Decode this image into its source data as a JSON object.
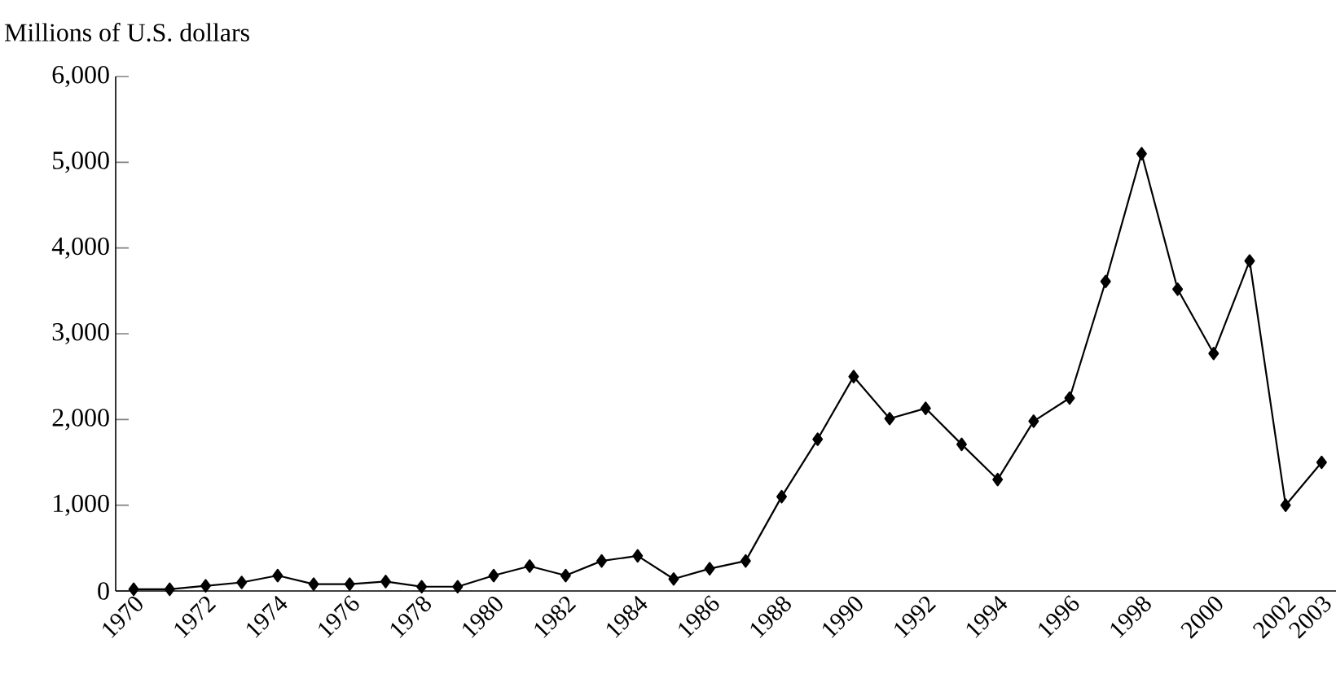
{
  "chart_data": {
    "type": "line",
    "ylabel": "Millions of U.S. dollars",
    "x": [
      1970,
      1971,
      1972,
      1973,
      1974,
      1975,
      1976,
      1977,
      1978,
      1979,
      1980,
      1981,
      1982,
      1983,
      1984,
      1985,
      1986,
      1987,
      1988,
      1989,
      1990,
      1991,
      1992,
      1993,
      1994,
      1995,
      1996,
      1997,
      1998,
      1999,
      2000,
      2001,
      2002,
      2003
    ],
    "values": [
      20,
      20,
      60,
      100,
      180,
      80,
      80,
      110,
      50,
      50,
      180,
      290,
      180,
      350,
      410,
      140,
      260,
      350,
      1100,
      1770,
      2500,
      2010,
      2130,
      1710,
      1300,
      1980,
      2250,
      3610,
      5100,
      3520,
      2770,
      3850,
      1000,
      1500
    ],
    "color": "#000000",
    "marker": "diamond",
    "line_style": "solid",
    "xlim": [
      1969.5,
      2003.4
    ],
    "ylim": [
      0,
      6000
    ],
    "xticks": [
      1970,
      1972,
      1974,
      1976,
      1978,
      1980,
      1982,
      1984,
      1986,
      1988,
      1990,
      1992,
      1994,
      1996,
      1998,
      2000,
      2002,
      2003
    ],
    "yticks": [
      0,
      {
        "value": 1000,
        "label": "1,000"
      },
      {
        "value": 2000,
        "label": "2,000"
      },
      {
        "value": 3000,
        "label": "3,000"
      },
      {
        "value": 4000,
        "label": "4,000"
      },
      {
        "value": 5000,
        "label": "5,000"
      },
      {
        "value": 6000,
        "label": "6,000"
      }
    ],
    "grid": false
  }
}
